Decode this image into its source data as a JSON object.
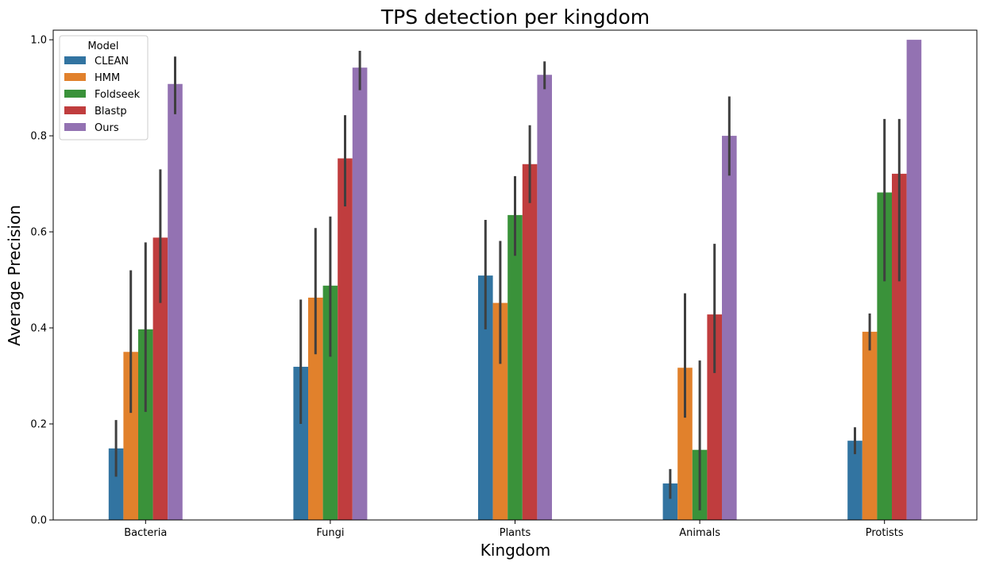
{
  "chart_data": {
    "type": "bar",
    "title": "TPS detection per kingdom",
    "xlabel": "Kingdom",
    "ylabel": "Average Precision",
    "categories": [
      "Bacteria",
      "Fungi",
      "Plants",
      "Animals",
      "Protists"
    ],
    "ylim": [
      0,
      1.02
    ],
    "yticks": [
      "0.0",
      "0.2",
      "0.4",
      "0.6",
      "0.8",
      "1.0"
    ],
    "grid": false,
    "legend": {
      "title": "Model",
      "placement": "top-left"
    },
    "series": [
      {
        "name": "CLEAN",
        "color": "#3274a1",
        "values": [
          0.149,
          0.319,
          0.509,
          0.076,
          0.165
        ],
        "err_low": [
          0.09,
          0.2,
          0.397,
          0.044,
          0.137
        ],
        "err_high": [
          0.208,
          0.459,
          0.625,
          0.106,
          0.193
        ]
      },
      {
        "name": "HMM",
        "color": "#e1812c",
        "values": [
          0.35,
          0.463,
          0.452,
          0.317,
          0.392
        ],
        "err_low": [
          0.223,
          0.345,
          0.325,
          0.213,
          0.353
        ],
        "err_high": [
          0.52,
          0.608,
          0.581,
          0.472,
          0.43
        ]
      },
      {
        "name": "Foldseek",
        "color": "#3a923a",
        "values": [
          0.397,
          0.488,
          0.635,
          0.146,
          0.682
        ],
        "err_low": [
          0.225,
          0.34,
          0.55,
          0.02,
          0.497
        ],
        "err_high": [
          0.578,
          0.632,
          0.716,
          0.332,
          0.835
        ]
      },
      {
        "name": "Blastp",
        "color": "#c03d3e",
        "values": [
          0.588,
          0.753,
          0.741,
          0.428,
          0.721
        ],
        "err_low": [
          0.452,
          0.653,
          0.66,
          0.306,
          0.497
        ],
        "err_high": [
          0.73,
          0.843,
          0.822,
          0.575,
          0.835
        ]
      },
      {
        "name": "Ours",
        "color": "#9372b2",
        "values": [
          0.908,
          0.942,
          0.927,
          0.8,
          1.0
        ],
        "err_low": [
          0.845,
          0.895,
          0.897,
          0.717,
          1.0
        ],
        "err_high": [
          0.965,
          0.977,
          0.955,
          0.882,
          1.0
        ]
      }
    ]
  }
}
